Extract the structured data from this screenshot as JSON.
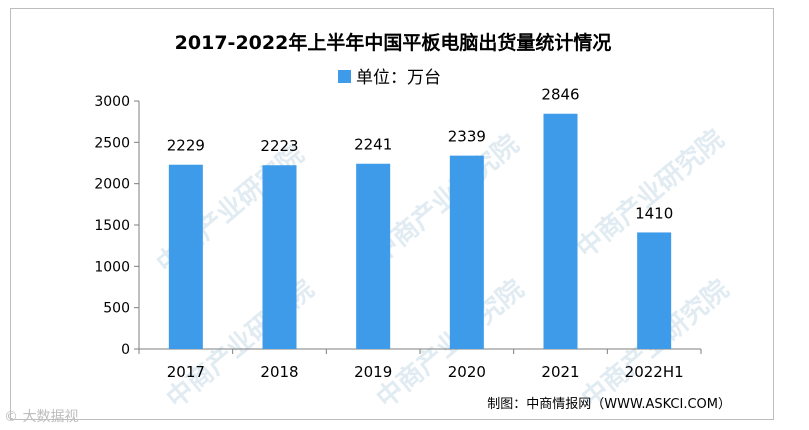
{
  "chart_data": {
    "type": "bar",
    "title": "2017-2022年上半年中国平板电脑出货量统计情况",
    "legend": "单位：万台",
    "legend_position": "top-center",
    "categories": [
      "2017",
      "2018",
      "2019",
      "2020",
      "2021",
      "2022H1"
    ],
    "values": [
      2229,
      2223,
      2241,
      2339,
      2846,
      1410
    ],
    "data_labels": [
      "2229",
      "2223",
      "2241",
      "2339",
      "2846",
      "1410"
    ],
    "y_ticks": [
      "0",
      "500",
      "1000",
      "1500",
      "2000",
      "2500",
      "3000"
    ],
    "ylim": [
      0,
      3000
    ],
    "grid": false,
    "bar_color": "#3d9be9",
    "source": "制图：中商情报网（WWW.ASKCI.COM）"
  },
  "watermark": {
    "text": "中商产业研究院",
    "color": "#c9dbe8"
  },
  "footer_watermark": "© 大数据视"
}
